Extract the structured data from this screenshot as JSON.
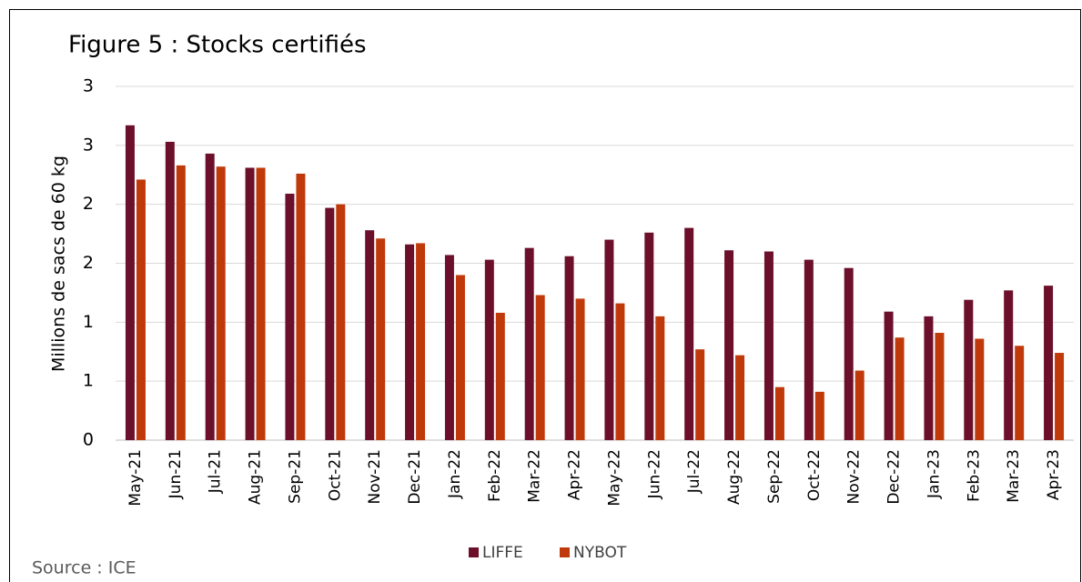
{
  "chart_data": {
    "type": "bar",
    "title": "Figure 5 : Stocks certifiés",
    "y_label": "Millions de sacs de 60 kg",
    "source": "Source : ICE",
    "categories": [
      "May-21",
      "Jun-21",
      "Jul-21",
      "Aug-21",
      "Sep-21",
      "Oct-21",
      "Nov-21",
      "Dec-21",
      "Jan-22",
      "Feb-22",
      "Mar-22",
      "Apr-22",
      "May-22",
      "Jun-22",
      "Jul-22",
      "Aug-22",
      "Sep-22",
      "Oct-22",
      "Nov-22",
      "Dec-22",
      "Jan-23",
      "Feb-23",
      "Mar-23",
      "Apr-23"
    ],
    "series": [
      {
        "name": "LIFFE",
        "color": "#6b0f2a",
        "values": [
          2.67,
          2.53,
          2.43,
          2.31,
          2.09,
          1.97,
          1.78,
          1.66,
          1.57,
          1.53,
          1.63,
          1.56,
          1.7,
          1.76,
          1.8,
          1.61,
          1.6,
          1.53,
          1.46,
          1.09,
          1.05,
          1.19,
          1.27,
          1.31
        ]
      },
      {
        "name": "NYBOT",
        "color": "#c0390b",
        "values": [
          2.21,
          2.33,
          2.32,
          2.31,
          2.26,
          2.0,
          1.71,
          1.67,
          1.4,
          1.08,
          1.23,
          1.2,
          1.16,
          1.05,
          0.77,
          0.72,
          0.45,
          0.41,
          0.59,
          0.87,
          0.91,
          0.86,
          0.8,
          0.74
        ]
      }
    ],
    "ylim": [
      0,
      3
    ],
    "yticks": [
      0,
      {
        "value": 0.5,
        "label": "1"
      },
      1,
      {
        "value": 1.5,
        "label": "2"
      },
      2,
      {
        "value": 2.5,
        "label": "3"
      },
      3
    ],
    "grid": true
  }
}
